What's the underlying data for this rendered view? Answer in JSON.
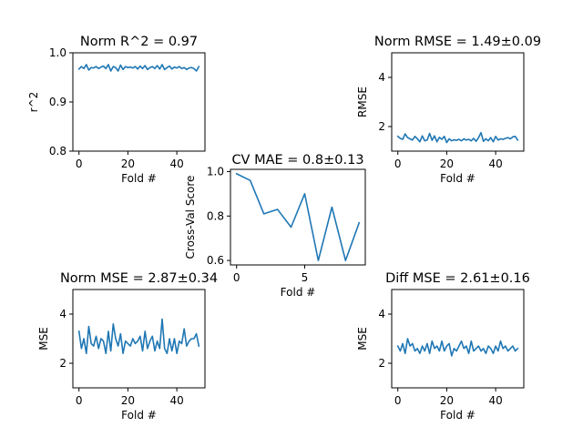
{
  "chart_data": [
    {
      "id": "norm-r2",
      "type": "line",
      "title": "Norm R^2 = 0.97",
      "xlabel": "Fold #",
      "ylabel": "r^2",
      "xlim": [
        -2.5,
        51.5
      ],
      "ylim": [
        0.8,
        1.0
      ],
      "xticks": [
        0,
        20,
        40
      ],
      "yticks": [
        0.8,
        0.9,
        1.0
      ],
      "ytick_labels": [
        "0.8",
        "0.9",
        "1.0"
      ],
      "x": [
        0,
        1,
        2,
        3,
        4,
        5,
        6,
        7,
        8,
        9,
        10,
        11,
        12,
        13,
        14,
        15,
        16,
        17,
        18,
        19,
        20,
        21,
        22,
        23,
        24,
        25,
        26,
        27,
        28,
        29,
        30,
        31,
        32,
        33,
        34,
        35,
        36,
        37,
        38,
        39,
        40,
        41,
        42,
        43,
        44,
        45,
        46,
        47,
        48,
        49
      ],
      "series": [
        {
          "values": [
            0.967,
            0.972,
            0.968,
            0.976,
            0.965,
            0.97,
            0.969,
            0.972,
            0.968,
            0.971,
            0.973,
            0.968,
            0.976,
            0.963,
            0.972,
            0.97,
            0.963,
            0.975,
            0.966,
            0.972,
            0.97,
            0.971,
            0.969,
            0.972,
            0.967,
            0.973,
            0.968,
            0.974,
            0.966,
            0.97,
            0.972,
            0.968,
            0.974,
            0.967,
            0.976,
            0.966,
            0.97,
            0.973,
            0.967,
            0.971,
            0.969,
            0.972,
            0.968,
            0.97,
            0.966,
            0.969,
            0.97,
            0.968,
            0.963,
            0.972
          ]
        }
      ]
    },
    {
      "id": "norm-rmse",
      "type": "line",
      "title": "Norm RMSE = 1.49±0.09",
      "xlabel": "Fold #",
      "ylabel": "RMSE",
      "xlim": [
        -2.5,
        51.5
      ],
      "ylim": [
        1.0,
        5.0
      ],
      "xticks": [
        0,
        20,
        40
      ],
      "yticks": [
        2,
        4
      ],
      "ytick_labels": [
        "2",
        "4"
      ],
      "x": [
        0,
        1,
        2,
        3,
        4,
        5,
        6,
        7,
        8,
        9,
        10,
        11,
        12,
        13,
        14,
        15,
        16,
        17,
        18,
        19,
        20,
        21,
        22,
        23,
        24,
        25,
        26,
        27,
        28,
        29,
        30,
        31,
        32,
        33,
        34,
        35,
        36,
        37,
        38,
        39,
        40,
        41,
        42,
        43,
        44,
        45,
        46,
        47,
        48,
        49
      ],
      "series": [
        {
          "values": [
            1.6,
            1.52,
            1.48,
            1.7,
            1.55,
            1.5,
            1.45,
            1.6,
            1.5,
            1.38,
            1.62,
            1.42,
            1.45,
            1.72,
            1.44,
            1.62,
            1.38,
            1.56,
            1.48,
            1.6,
            1.35,
            1.5,
            1.42,
            1.46,
            1.44,
            1.48,
            1.42,
            1.5,
            1.45,
            1.48,
            1.42,
            1.52,
            1.4,
            1.55,
            1.75,
            1.4,
            1.5,
            1.42,
            1.55,
            1.38,
            1.6,
            1.45,
            1.5,
            1.48,
            1.52,
            1.55,
            1.5,
            1.58,
            1.6,
            1.45
          ]
        }
      ]
    },
    {
      "id": "cv-mae",
      "type": "line",
      "title": "CV MAE = 0.8±0.13",
      "xlabel": "Fold #",
      "ylabel": "Cross-Val Score",
      "xlim": [
        -0.45,
        9.45
      ],
      "ylim": [
        0.58,
        1.01
      ],
      "xticks": [
        0,
        5
      ],
      "yticks": [
        0.6,
        0.8,
        1.0
      ],
      "ytick_labels": [
        "0.6",
        "0.8",
        "1.0"
      ],
      "x": [
        0,
        1,
        2,
        3,
        4,
        5,
        6,
        7,
        8,
        9
      ],
      "series": [
        {
          "values": [
            0.99,
            0.96,
            0.81,
            0.83,
            0.75,
            0.9,
            0.6,
            0.84,
            0.6,
            0.77
          ]
        }
      ]
    },
    {
      "id": "norm-mse",
      "type": "line",
      "title": "Norm MSE = 2.87±0.34",
      "xlabel": "Fold #",
      "ylabel": "MSE",
      "xlim": [
        -2.5,
        51.5
      ],
      "ylim": [
        1.0,
        5.0
      ],
      "xticks": [
        0,
        20,
        40
      ],
      "yticks": [
        2,
        4
      ],
      "ytick_labels": [
        "2",
        "4"
      ],
      "x": [
        0,
        1,
        2,
        3,
        4,
        5,
        6,
        7,
        8,
        9,
        10,
        11,
        12,
        13,
        14,
        15,
        16,
        17,
        18,
        19,
        20,
        21,
        22,
        23,
        24,
        25,
        26,
        27,
        28,
        29,
        30,
        31,
        32,
        33,
        34,
        35,
        36,
        37,
        38,
        39,
        40,
        41,
        42,
        43,
        44,
        45,
        46,
        47,
        48,
        49
      ],
      "series": [
        {
          "values": [
            3.3,
            2.6,
            3.0,
            2.4,
            3.5,
            2.8,
            2.7,
            3.1,
            2.6,
            3.0,
            2.9,
            2.4,
            3.3,
            2.5,
            3.6,
            3.0,
            2.7,
            3.2,
            2.4,
            2.9,
            2.8,
            2.7,
            3.0,
            2.8,
            2.9,
            3.1,
            2.5,
            3.3,
            2.6,
            2.9,
            3.1,
            2.5,
            2.9,
            2.6,
            3.8,
            2.6,
            2.4,
            3.0,
            2.5,
            3.0,
            2.4,
            2.9,
            2.8,
            3.4,
            2.7,
            2.9,
            3.0,
            3.0,
            3.2,
            2.7
          ]
        }
      ]
    },
    {
      "id": "diff-mse",
      "type": "line",
      "title": "Diff MSE = 2.61±0.16",
      "xlabel": "Fold #",
      "ylabel": "MSE",
      "xlim": [
        -2.5,
        51.5
      ],
      "ylim": [
        1.0,
        5.0
      ],
      "xticks": [
        0,
        20,
        40
      ],
      "yticks": [
        2,
        4
      ],
      "ytick_labels": [
        "2",
        "4"
      ],
      "x": [
        0,
        1,
        2,
        3,
        4,
        5,
        6,
        7,
        8,
        9,
        10,
        11,
        12,
        13,
        14,
        15,
        16,
        17,
        18,
        19,
        20,
        21,
        22,
        23,
        24,
        25,
        26,
        27,
        28,
        29,
        30,
        31,
        32,
        33,
        34,
        35,
        36,
        37,
        38,
        39,
        40,
        41,
        42,
        43,
        44,
        45,
        46,
        47,
        48,
        49
      ],
      "series": [
        {
          "values": [
            2.7,
            2.5,
            2.8,
            2.4,
            3.0,
            2.7,
            2.8,
            2.5,
            2.6,
            2.4,
            2.7,
            2.5,
            2.8,
            2.4,
            2.9,
            2.6,
            2.7,
            2.5,
            2.9,
            2.5,
            2.7,
            2.8,
            2.3,
            2.6,
            2.5,
            2.7,
            2.9,
            2.6,
            2.7,
            2.4,
            2.9,
            2.5,
            2.6,
            2.7,
            2.5,
            2.6,
            2.4,
            2.7,
            2.6,
            2.4,
            2.7,
            2.5,
            2.9,
            2.6,
            2.7,
            2.5,
            2.6,
            2.7,
            2.5,
            2.6
          ]
        }
      ]
    }
  ]
}
